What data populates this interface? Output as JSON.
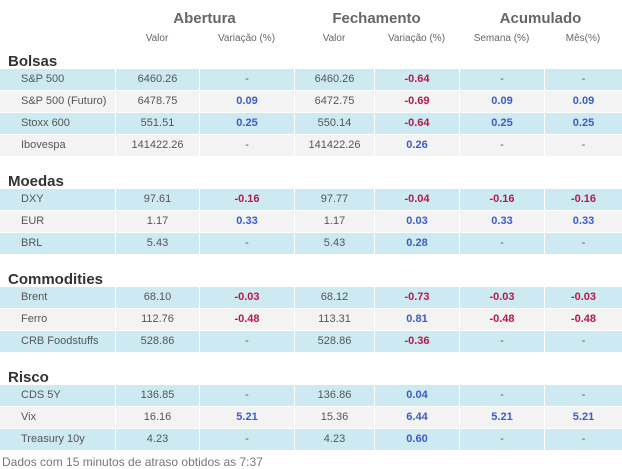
{
  "header": {
    "groups": [
      "Abertura",
      "Fechamento",
      "Acumulado"
    ],
    "subheaders": [
      "Valor",
      "Variação (%)",
      "Valor",
      "Variação (%)",
      "Semana (%)",
      "Mês(%)"
    ]
  },
  "sections": [
    {
      "title": "Bolsas",
      "rows": [
        {
          "name": "S&P 500",
          "open_value": "6460.26",
          "open_var": "-",
          "close_value": "6460.26",
          "close_var": "-0.64",
          "week": "-",
          "month": "-"
        },
        {
          "name": "S&P 500 (Futuro)",
          "open_value": "6478.75",
          "open_var": "0.09",
          "close_value": "6472.75",
          "close_var": "-0.69",
          "week": "0.09",
          "month": "0.09"
        },
        {
          "name": "Stoxx 600",
          "open_value": "551.51",
          "open_var": "0.25",
          "close_value": "550.14",
          "close_var": "-0.64",
          "week": "0.25",
          "month": "0.25"
        },
        {
          "name": "Ibovespa",
          "open_value": "141422.26",
          "open_var": "-",
          "close_value": "141422.26",
          "close_var": "0.26",
          "week": "-",
          "month": "-"
        }
      ]
    },
    {
      "title": "Moedas",
      "rows": [
        {
          "name": "DXY",
          "open_value": "97.61",
          "open_var": "-0.16",
          "close_value": "97.77",
          "close_var": "-0.04",
          "week": "-0.16",
          "month": "-0.16"
        },
        {
          "name": "EUR",
          "open_value": "1.17",
          "open_var": "0.33",
          "close_value": "1.17",
          "close_var": "0.03",
          "week": "0.33",
          "month": "0.33"
        },
        {
          "name": "BRL",
          "open_value": "5.43",
          "open_var": "-",
          "close_value": "5.43",
          "close_var": "0.28",
          "week": "-",
          "month": "-"
        }
      ]
    },
    {
      "title": "Commodities",
      "rows": [
        {
          "name": "Brent",
          "open_value": "68.10",
          "open_var": "-0.03",
          "close_value": "68.12",
          "close_var": "-0.73",
          "week": "-0.03",
          "month": "-0.03"
        },
        {
          "name": "Ferro",
          "open_value": "112.76",
          "open_var": "-0.48",
          "close_value": "113.31",
          "close_var": "0.81",
          "week": "-0.48",
          "month": "-0.48"
        },
        {
          "name": "CRB Foodstuffs",
          "open_value": "528.86",
          "open_var": "-",
          "close_value": "528.86",
          "close_var": "-0.36",
          "week": "-",
          "month": "-"
        }
      ]
    },
    {
      "title": "Risco",
      "rows": [
        {
          "name": "CDS 5Y",
          "open_value": "136.85",
          "open_var": "-",
          "close_value": "136.86",
          "close_var": "0.04",
          "week": "-",
          "month": "-"
        },
        {
          "name": "Vix",
          "open_value": "16.16",
          "open_var": "5.21",
          "close_value": "15.36",
          "close_var": "6.44",
          "week": "5.21",
          "month": "5.21"
        },
        {
          "name": "Treasury 10y",
          "open_value": "4.23",
          "open_var": "-",
          "close_value": "4.23",
          "close_var": "0.60",
          "week": "-",
          "month": "-"
        }
      ]
    }
  ],
  "footer": "Dados com 15 minutos de atraso obtidos as 7:37",
  "colors": {
    "positive": "#3b5cc9",
    "negative": "#b5194a",
    "row_blue": "#cdeaf2",
    "row_gray": "#f3f3f3"
  }
}
